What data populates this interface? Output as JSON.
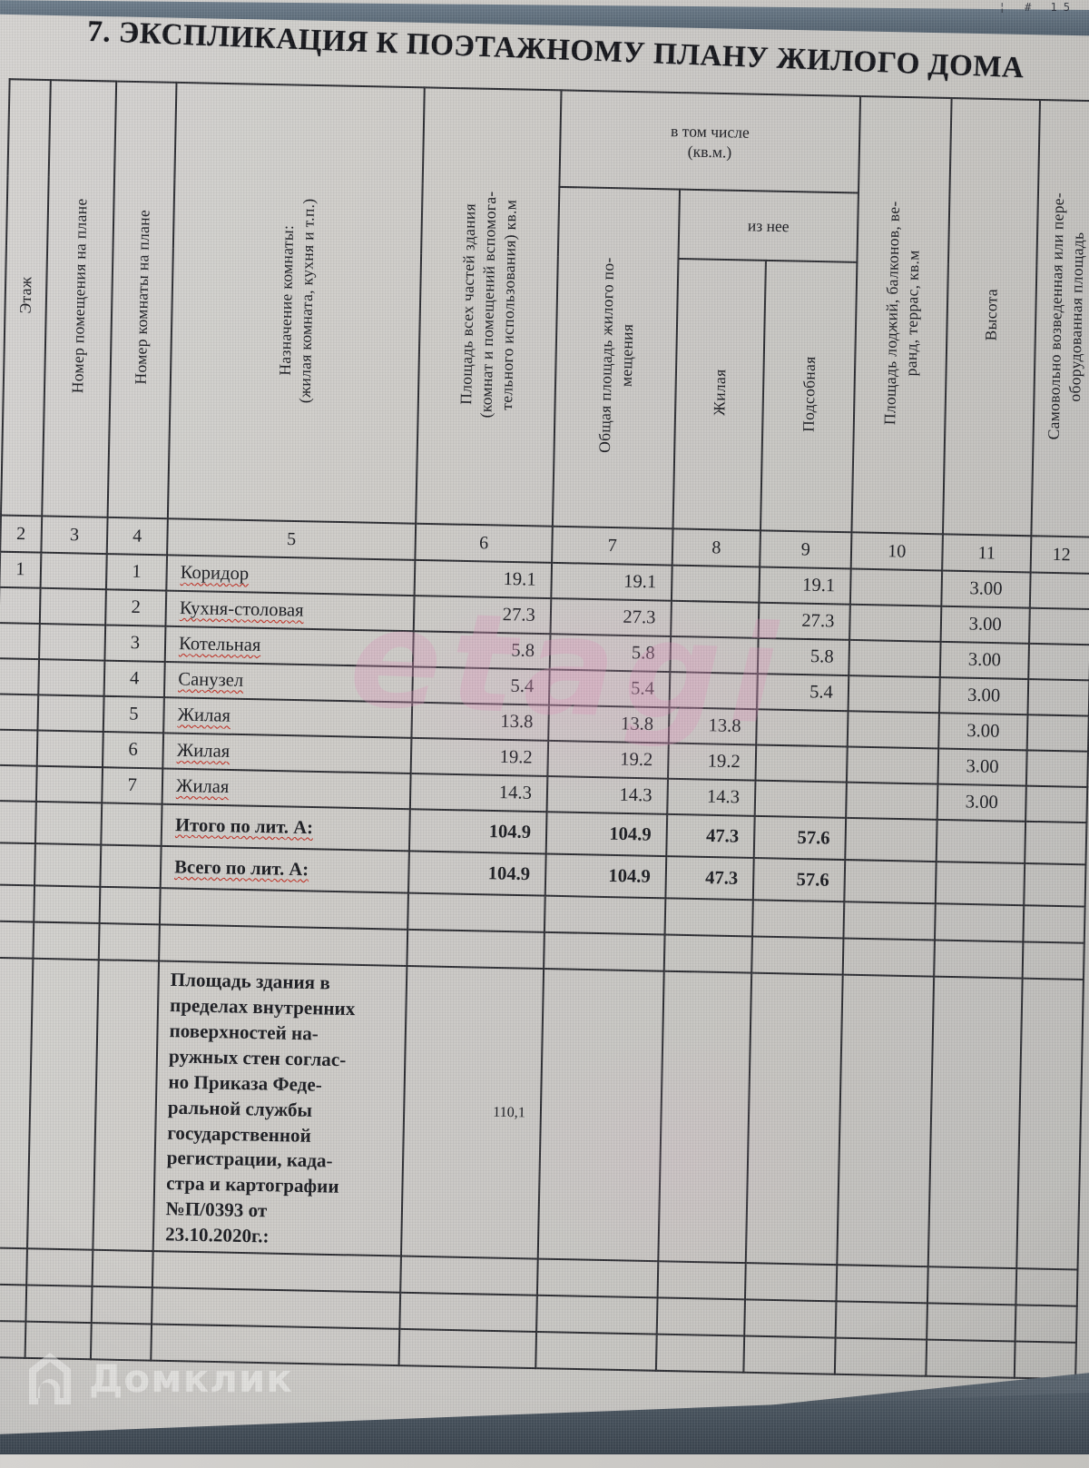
{
  "screen": {
    "toolbar_fragment": "¦ # 15"
  },
  "title": "7. ЭКСПЛИКАЦИЯ К ПОЭТАЖНОМУ ПЛАНУ ЖИЛОГО ДОМА",
  "watermarks": {
    "center": "etagi",
    "brand": "Домклик"
  },
  "table": {
    "headers": {
      "floor": "Этаж",
      "premise_number": "Номер помещения на плане",
      "room_number": "Номер комнаты на плане",
      "purpose": "Назначение комнаты:\n(жилая комната, кухня и т.п.)",
      "total_area": "Площадь всех частей здания\n(комнат и помещений вспомога-\nтельного использования) кв.м",
      "including": "в том числе\n(кв.м.)",
      "of_it": "из нее",
      "living_total": "Общая площадь жилого по-\nмещения",
      "living": "Жилая",
      "auxiliary": "Подсобная",
      "balcony": "Площадь лоджий, балконов, ве-\nранд, террас, кв.м",
      "height": "Высота",
      "unauthorized": "Самовольно возведенная или пере-\nоборудованная площадь"
    },
    "column_numbers": [
      "2",
      "3",
      "4",
      "5",
      "6",
      "7",
      "8",
      "9",
      "10",
      "11",
      "12"
    ],
    "rows": [
      {
        "floor": "1",
        "room": "",
        "num": "1",
        "name": "Коридор",
        "c6": "19.1",
        "c7": "19.1",
        "c8": "",
        "c9": "19.1",
        "c10": "",
        "c11": "3.00",
        "c12": ""
      },
      {
        "floor": "",
        "room": "",
        "num": "2",
        "name": "Кухня-столовая",
        "c6": "27.3",
        "c7": "27.3",
        "c8": "",
        "c9": "27.3",
        "c10": "",
        "c11": "3.00",
        "c12": ""
      },
      {
        "floor": "",
        "room": "",
        "num": "3",
        "name": "Котельная",
        "c6": "5.8",
        "c7": "5.8",
        "c8": "",
        "c9": "5.8",
        "c10": "",
        "c11": "3.00",
        "c12": ""
      },
      {
        "floor": "",
        "room": "",
        "num": "4",
        "name": "Санузел",
        "c6": "5.4",
        "c7": "5.4",
        "c8": "",
        "c9": "5.4",
        "c10": "",
        "c11": "3.00",
        "c12": ""
      },
      {
        "floor": "",
        "room": "",
        "num": "5",
        "name": "Жилая",
        "c6": "13.8",
        "c7": "13.8",
        "c8": "13.8",
        "c9": "",
        "c10": "",
        "c11": "3.00",
        "c12": ""
      },
      {
        "floor": "",
        "room": "",
        "num": "6",
        "name": "Жилая",
        "c6": "19.2",
        "c7": "19.2",
        "c8": "19.2",
        "c9": "",
        "c10": "",
        "c11": "3.00",
        "c12": ""
      },
      {
        "floor": "",
        "room": "",
        "num": "7",
        "name": "Жилая",
        "c6": "14.3",
        "c7": "14.3",
        "c8": "14.3",
        "c9": "",
        "c10": "",
        "c11": "3.00",
        "c12": ""
      }
    ],
    "totals": {
      "label": "Итого по лит. А:",
      "c6": "104.9",
      "c7": "104.9",
      "c8": "47.3",
      "c9": "57.6"
    },
    "grand_total": {
      "label": "Всего по лит. А:",
      "c6": "104.9",
      "c7": "104.9",
      "c8": "47.3",
      "c9": "57.6"
    },
    "building_area_note": {
      "text": "Площадь здания в\nпределах внутренних\nповерхностей на-\nружных стен соглас-\nно Приказа Феде-\nральной службы\nгосударственной\nрегистрации, када-\nстра и картографии\n№П/0393 от\n23.10.2020г.:",
      "value": "110,1"
    }
  }
}
